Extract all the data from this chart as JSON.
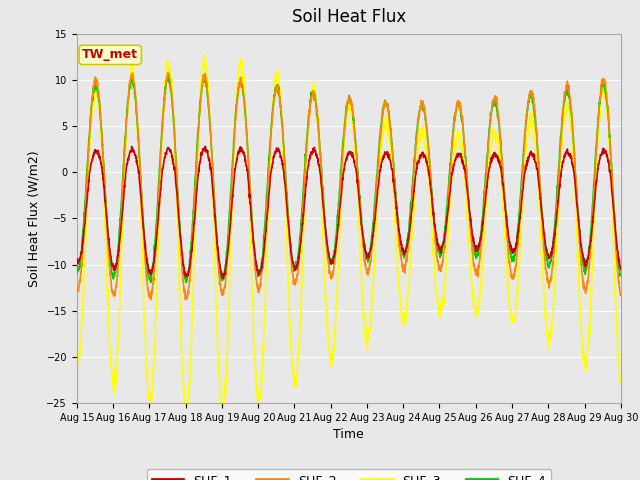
{
  "title": "Soil Heat Flux",
  "xlabel": "Time",
  "ylabel": "Soil Heat Flux (W/m2)",
  "ylim": [
    -25,
    15
  ],
  "yticks": [
    -25,
    -20,
    -15,
    -10,
    -5,
    0,
    5,
    10,
    15
  ],
  "x_tick_labels": [
    "Aug 15",
    "Aug 16",
    "Aug 17",
    "Aug 18",
    "Aug 19",
    "Aug 20",
    "Aug 21",
    "Aug 22",
    "Aug 23",
    "Aug 24",
    "Aug 25",
    "Aug 26",
    "Aug 27",
    "Aug 28",
    "Aug 29",
    "Aug 30"
  ],
  "bg_color": "#e8e8e8",
  "plot_bg_color": "#e8e8e8",
  "grid_color": "#ffffff",
  "annotation_text": "TW_met",
  "annotation_bg": "#ffffcc",
  "annotation_border": "#cccc00",
  "annotation_text_color": "#cc0000",
  "series_colors": {
    "SHF_1": "#cc0000",
    "SHF_2": "#ff8800",
    "SHF_3": "#ffff00",
    "SHF_4": "#00cc00"
  },
  "n_days": 15,
  "points_per_day": 144,
  "title_fontsize": 12,
  "label_fontsize": 9,
  "tick_fontsize": 7,
  "legend_fontsize": 9,
  "line_width": 1.2
}
